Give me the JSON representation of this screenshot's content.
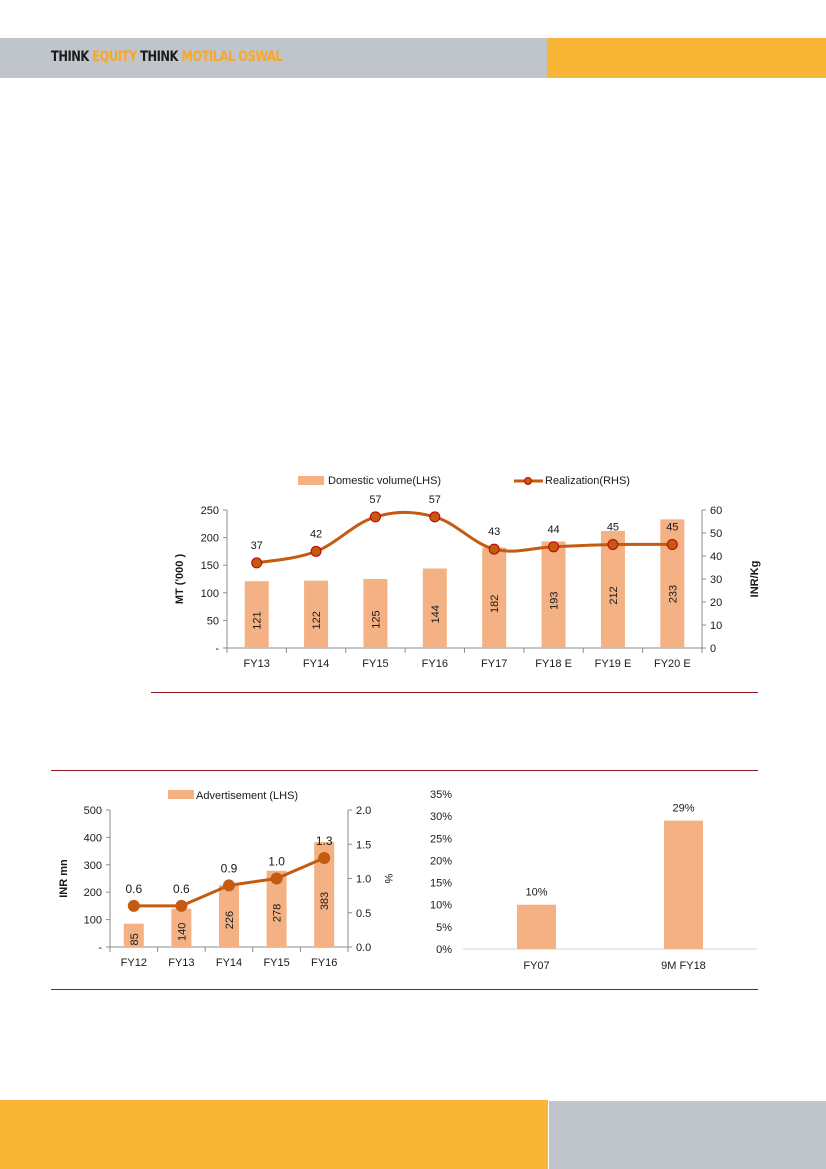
{
  "header": {
    "brand_parts": [
      {
        "text": "THINK",
        "style": "dark"
      },
      {
        "text": "EQUITY",
        "style": "accent"
      },
      {
        "text": "THINK",
        "style": "dark"
      },
      {
        "text": "MOTILAL OSWAL",
        "style": "accent"
      }
    ]
  },
  "colors": {
    "bar": "#f4b183",
    "line": "#c55a11",
    "marker_edge": "#c00000",
    "rule": "#8b1a1f",
    "header_gray": "#c0c4cb",
    "brand_orange": "#f9b535"
  },
  "chart_data": [
    {
      "type": "bar",
      "combo": "bar+line",
      "categories": [
        "FY13",
        "FY14",
        "FY15",
        "FY16",
        "FY17",
        "FY18 E",
        "FY19 E",
        "FY20 E"
      ],
      "series": [
        {
          "name": "Domestic volume(LHS)",
          "type": "bar",
          "axis": "left",
          "values": [
            121,
            122,
            125,
            144,
            182,
            193,
            212,
            233
          ],
          "labels": [
            "121",
            "122",
            "125",
            "144",
            "182",
            "193",
            "212",
            "233"
          ]
        },
        {
          "name": "Realization(RHS)",
          "type": "line",
          "axis": "right",
          "values": [
            37,
            42,
            57,
            57,
            43,
            44,
            45,
            45
          ],
          "labels": [
            "37",
            "42",
            "57",
            "57",
            "43",
            "44",
            "45",
            "45"
          ]
        }
      ],
      "ylabel": "MT ('000 )",
      "y2label": "INR/Kg",
      "ylim": [
        0,
        250
      ],
      "yticks": [
        0,
        50,
        100,
        150,
        200,
        250
      ],
      "ytick_labels": [
        "-",
        "50",
        "100",
        "150",
        "200",
        "250"
      ],
      "y2lim": [
        0,
        60
      ],
      "y2ticks": [
        0,
        10,
        20,
        30,
        40,
        50,
        60
      ],
      "y2tick_labels": [
        "0",
        "10",
        "20",
        "30",
        "40",
        "50",
        "60"
      ],
      "legend": "top"
    },
    {
      "type": "bar",
      "combo": "bar+line",
      "categories": [
        "FY12",
        "FY13",
        "FY14",
        "FY15",
        "FY16"
      ],
      "series": [
        {
          "name": "Advertisement (LHS)",
          "type": "bar",
          "axis": "left",
          "values": [
            85,
            140,
            226,
            278,
            383
          ],
          "labels": [
            "85",
            "140",
            "226",
            "278",
            "383"
          ]
        },
        {
          "name": "",
          "type": "line",
          "axis": "right",
          "values": [
            0.6,
            0.6,
            0.9,
            1.0,
            1.3
          ],
          "labels": [
            "0.6",
            "0.6",
            "0.9",
            "1.0",
            "1.3"
          ]
        }
      ],
      "ylabel": "INR mn",
      "y2label": "%",
      "ylim": [
        0,
        500
      ],
      "yticks": [
        0,
        100,
        200,
        300,
        400,
        500
      ],
      "ytick_labels": [
        "-",
        "100",
        "200",
        "300",
        "400",
        "500"
      ],
      "y2lim": [
        0,
        2.0
      ],
      "y2ticks": [
        0,
        0.5,
        1.0,
        1.5,
        2.0
      ],
      "y2tick_labels": [
        "0.0",
        "0.5",
        "1.0",
        "1.5",
        "2.0"
      ],
      "legend": "top"
    },
    {
      "type": "bar",
      "categories": [
        "FY07",
        "9M FY18"
      ],
      "values": [
        10,
        29
      ],
      "labels": [
        "10%",
        "29%"
      ],
      "ylim": [
        0,
        35
      ],
      "yticks": [
        0,
        5,
        10,
        15,
        20,
        25,
        30,
        35
      ],
      "ytick_labels": [
        "0%",
        "5%",
        "10%",
        "15%",
        "20%",
        "25%",
        "30%",
        "35%"
      ],
      "xlabel": "",
      "ylabel": ""
    }
  ]
}
